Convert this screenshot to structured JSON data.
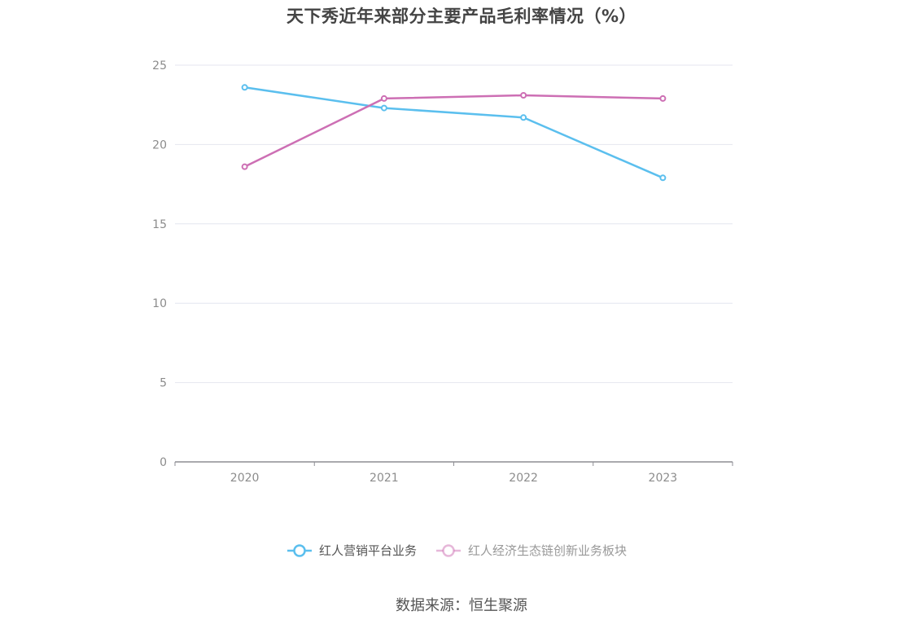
{
  "chart_data": {
    "type": "line",
    "title": "天下秀近年来部分主要产品毛利率情况（%）",
    "categories": [
      "2020",
      "2021",
      "2022",
      "2023"
    ],
    "series": [
      {
        "name": "红人营销平台业务",
        "values": [
          23.6,
          22.3,
          21.7,
          17.9
        ],
        "color": "#5bbfee"
      },
      {
        "name": "红人经济生态链创新业务板块",
        "values": [
          18.6,
          22.9,
          23.1,
          22.9
        ],
        "color": "#cd6fb4"
      }
    ],
    "ylim": [
      0,
      25
    ],
    "yticks": [
      "0",
      "5",
      "10",
      "15",
      "20",
      "25"
    ],
    "grid": true,
    "legend_position": "bottom-center"
  },
  "source": "数据来源：恒生聚源",
  "colors": {
    "grid": "#e4e6ef",
    "axis": "#8e8e94",
    "tick_text": "#8c8c8c",
    "legend_active_text": "#555555",
    "legend_inactive_text": "#999999"
  }
}
